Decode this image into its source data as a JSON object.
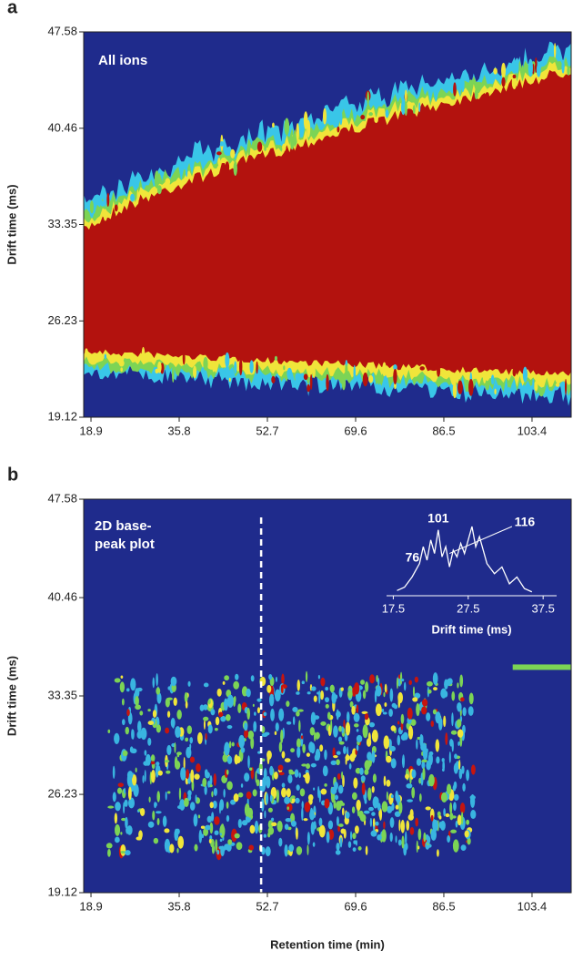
{
  "chart_data": [
    {
      "type": "heatmap",
      "panel": "a",
      "annotation": "All ions",
      "ylabel": "Drift time (ms)",
      "xlim": [
        17.5,
        110.9
      ],
      "xticks": [
        18.9,
        35.8,
        52.7,
        69.6,
        86.5,
        103.4
      ],
      "ylim": [
        19.12,
        47.58
      ],
      "yticks": [
        19.12,
        26.23,
        33.35,
        40.46,
        47.58
      ]
    },
    {
      "type": "heatmap",
      "panel": "b",
      "annotation": [
        "2D base-",
        "peak plot"
      ],
      "ylabel": "Drift time (ms)",
      "xlabel": "Retention time (min)",
      "xlim": [
        17.5,
        110.9
      ],
      "xticks": [
        18.9,
        35.8,
        52.7,
        69.6,
        86.5,
        103.4
      ],
      "ylim": [
        19.12,
        47.58
      ],
      "yticks": [
        19.12,
        26.23,
        33.35,
        40.46,
        47.58
      ],
      "marker_line": 51.5
    },
    {
      "type": "line",
      "xlabel": "Drift time (ms)",
      "color": "#ffffff",
      "x": [
        18,
        19,
        20,
        21,
        21.5,
        22,
        22.5,
        23,
        23.5,
        24,
        24.5,
        25,
        25.5,
        26,
        26.5,
        27,
        27.5,
        28,
        28.5,
        29,
        30,
        31,
        32,
        33,
        34,
        35,
        36
      ],
      "values": [
        5,
        10,
        25,
        45,
        70,
        50,
        80,
        60,
        95,
        55,
        70,
        40,
        65,
        55,
        75,
        60,
        80,
        100,
        70,
        85,
        45,
        30,
        40,
        15,
        25,
        8,
        3
      ],
      "xlim": [
        16.6,
        39.3
      ],
      "xticks": [
        17.5,
        27.5,
        37.5
      ],
      "ylim": [
        0,
        100
      ],
      "peak_labels": [
        {
          "label": "76",
          "x": 21.5
        },
        {
          "label": "101",
          "x": 23.5
        },
        {
          "label": "116",
          "x": 28
        }
      ]
    }
  ]
}
